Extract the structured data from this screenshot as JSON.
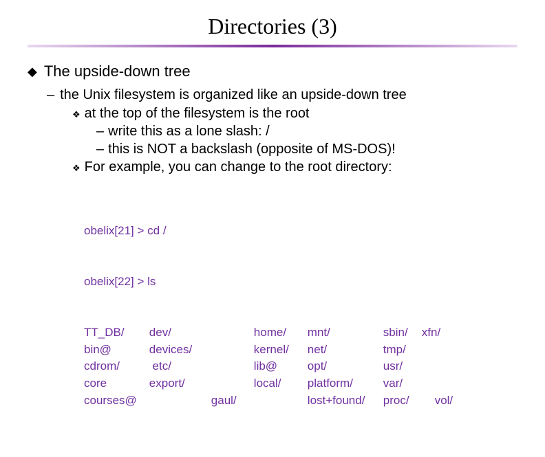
{
  "title": "Directories (3)",
  "top_bullet": "The upside-down tree",
  "sub_bullet": "the Unix filesystem is organized like an upside-down tree",
  "l3a": "at the top of the filesystem is the root",
  "l4a": "write this as a lone slash:   /",
  "l4b": "this is NOT a backslash (opposite of MS-DOS)!",
  "l3b": "For example, you can change to the root directory:",
  "cmd1": "obelix[21] > cd /",
  "cmd2": "obelix[22] > ls",
  "rows": [
    [
      "TT_DB/",
      "dev/",
      "",
      "home/",
      "mnt/",
      "sbin/",
      "xfn/"
    ],
    [
      "bin@",
      "devices/",
      "",
      "kernel/",
      "net/",
      "tmp/",
      ""
    ],
    [
      "cdrom/",
      " etc/",
      "",
      "lib@",
      "opt/",
      "usr/",
      ""
    ],
    [
      "core",
      "export/",
      "",
      "local/",
      "platform/",
      "var/",
      ""
    ],
    [
      "courses@",
      "",
      "gaul/",
      "",
      "lost+found/",
      "proc/",
      "    vol/"
    ]
  ],
  "colors": {
    "code_text": "#7030a0",
    "underline_gradient_mid": "#7a2a9a",
    "underline_gradient_edge": "#e8d8f0",
    "background": "#ffffff",
    "text": "#000000"
  },
  "fonts": {
    "title_family": "Times New Roman",
    "body_family": "Arial",
    "title_size_pt": 32,
    "body_size_pt": 20,
    "code_size_pt": 17
  }
}
